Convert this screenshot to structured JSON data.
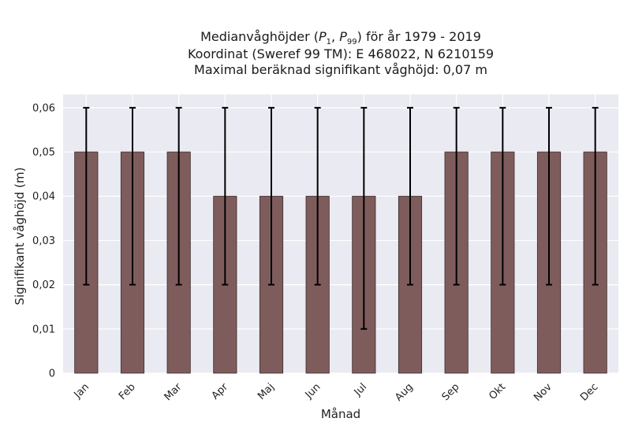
{
  "chart_data": {
    "type": "bar",
    "title_lines": [
      {
        "pre": "Medianvåghöjder (",
        "p1": "P",
        "s1": "1",
        "mid": ", ",
        "p2": "P",
        "s2": "99",
        "post": ") för år 1979 - 2019"
      },
      "Koordinat (Sweref 99 TM): E 468022, N 6210159",
      "Maximal beräknad signifikant våghöjd: 0,07 m"
    ],
    "xlabel": "Månad",
    "ylabel": "Signifikant våghöjd (m)",
    "categories": [
      "Jan",
      "Feb",
      "Mar",
      "Apr",
      "Maj",
      "Jun",
      "Jul",
      "Aug",
      "Sep",
      "Okt",
      "Nov",
      "Dec"
    ],
    "values": [
      0.05,
      0.05,
      0.05,
      0.04,
      0.04,
      0.04,
      0.04,
      0.04,
      0.05,
      0.05,
      0.05,
      0.05
    ],
    "error_low": [
      0.02,
      0.02,
      0.02,
      0.02,
      0.02,
      0.02,
      0.01,
      0.02,
      0.02,
      0.02,
      0.02,
      0.02
    ],
    "error_high": [
      0.06,
      0.06,
      0.06,
      0.06,
      0.06,
      0.06,
      0.06,
      0.06,
      0.06,
      0.06,
      0.06,
      0.06
    ],
    "ylim": [
      0,
      0.063
    ],
    "yticks": [
      0,
      0.01,
      0.02,
      0.03,
      0.04,
      0.05,
      0.06
    ],
    "ytick_labels": [
      "0",
      "0,01",
      "0,02",
      "0,03",
      "0,04",
      "0,05",
      "0,06"
    ],
    "grid": true,
    "colors": {
      "bar": "#7f5c5c",
      "bar_edge": "#3a2a2a",
      "error": "#000000",
      "background": "#eaeaf2",
      "grid": "#ffffff"
    }
  }
}
